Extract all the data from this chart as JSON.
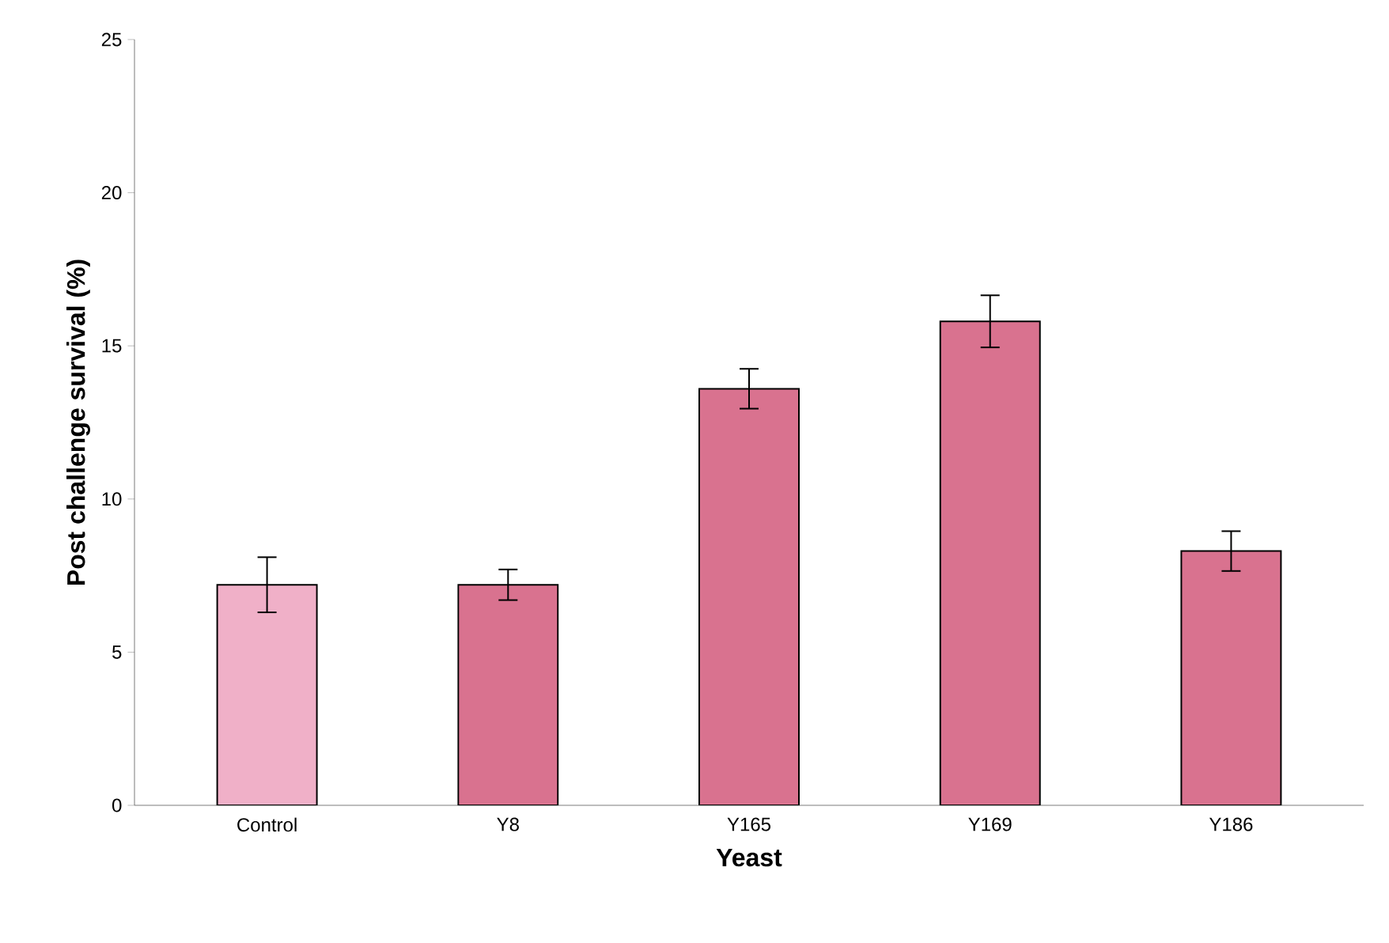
{
  "chart_data": {
    "type": "bar",
    "xlabel": "Yeast",
    "ylabel": "Post challenge survival (%)",
    "categories": [
      "Control",
      "Y8",
      "Y165",
      "Y169",
      "Y186"
    ],
    "values": [
      7.2,
      7.2,
      13.6,
      15.8,
      8.3
    ],
    "errors": [
      0.9,
      0.5,
      0.65,
      0.85,
      0.65
    ],
    "colors": [
      "#f0b0c8",
      "#d9728f",
      "#d9728f",
      "#d9728f",
      "#d9728f"
    ],
    "ylim": [
      0,
      25
    ],
    "yticks": [
      0,
      5,
      10,
      15,
      20,
      25
    ],
    "grid": false
  }
}
